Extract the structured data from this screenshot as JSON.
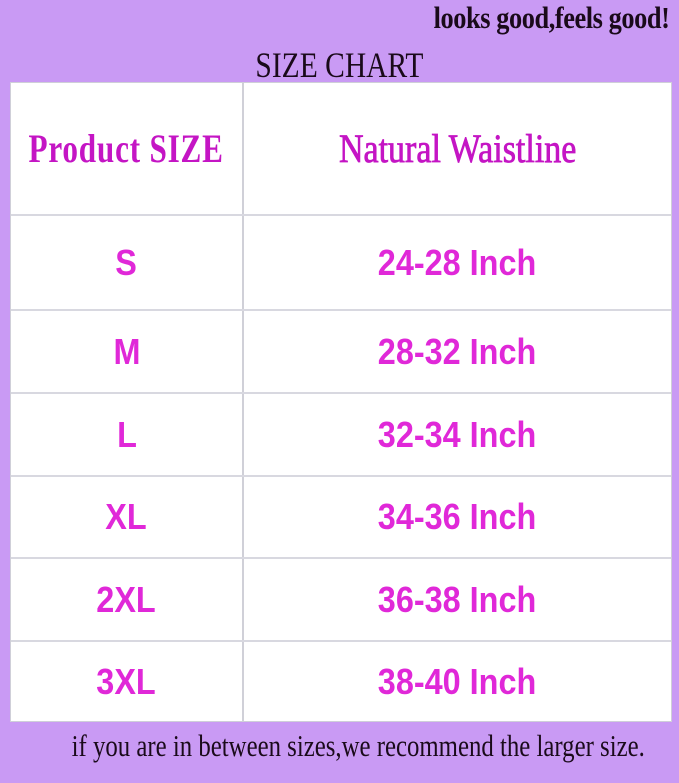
{
  "tagline": "looks good,feels good!",
  "title": "SIZE CHART",
  "table": {
    "headers": [
      "Product  SIZE",
      "Natural Waistline"
    ],
    "rows": [
      {
        "size": "S",
        "waist": "24-28 Inch"
      },
      {
        "size": "M",
        "waist": "28-32 Inch"
      },
      {
        "size": "L",
        "waist": "32-34 Inch"
      },
      {
        "size": "XL",
        "waist": "34-36 Inch"
      },
      {
        "size": "2XL",
        "waist": "36-38 Inch"
      },
      {
        "size": "3XL",
        "waist": "38-40 Inch"
      }
    ]
  },
  "footer": "if you are in between sizes,we recommend the larger size.",
  "colors": {
    "background": "#c99af4",
    "accent": "#e028d8",
    "header": "#c415c4"
  }
}
